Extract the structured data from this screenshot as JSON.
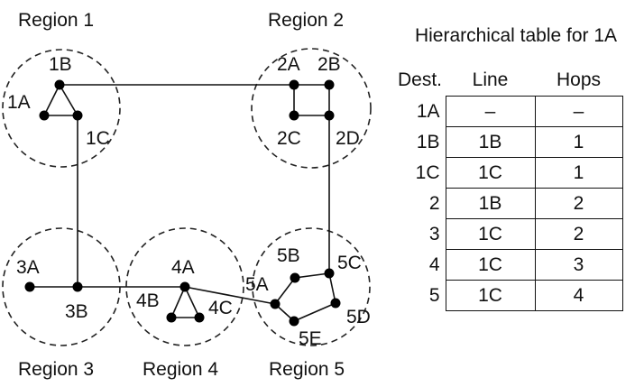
{
  "regions": [
    {
      "id": "r1",
      "label": "Region 1"
    },
    {
      "id": "r2",
      "label": "Region 2"
    },
    {
      "id": "r3",
      "label": "Region 3"
    },
    {
      "id": "r4",
      "label": "Region 4"
    },
    {
      "id": "r5",
      "label": "Region 5"
    }
  ],
  "routers": [
    "1A",
    "1B",
    "1C",
    "2A",
    "2B",
    "2C",
    "2D",
    "3A",
    "3B",
    "4A",
    "4B",
    "4C",
    "5A",
    "5B",
    "5C",
    "5D",
    "5E"
  ],
  "table": {
    "title": "Hierarchical table for 1A",
    "headers": {
      "dest": "Dest.",
      "line": "Line",
      "hops": "Hops"
    },
    "rows": [
      {
        "dest": "1A",
        "line": "–",
        "hops": "–"
      },
      {
        "dest": "1B",
        "line": "1B",
        "hops": "1"
      },
      {
        "dest": "1C",
        "line": "1C",
        "hops": "1"
      },
      {
        "dest": "2",
        "line": "1B",
        "hops": "2"
      },
      {
        "dest": "3",
        "line": "1C",
        "hops": "2"
      },
      {
        "dest": "4",
        "line": "1C",
        "hops": "3"
      },
      {
        "dest": "5",
        "line": "1C",
        "hops": "4"
      }
    ]
  }
}
